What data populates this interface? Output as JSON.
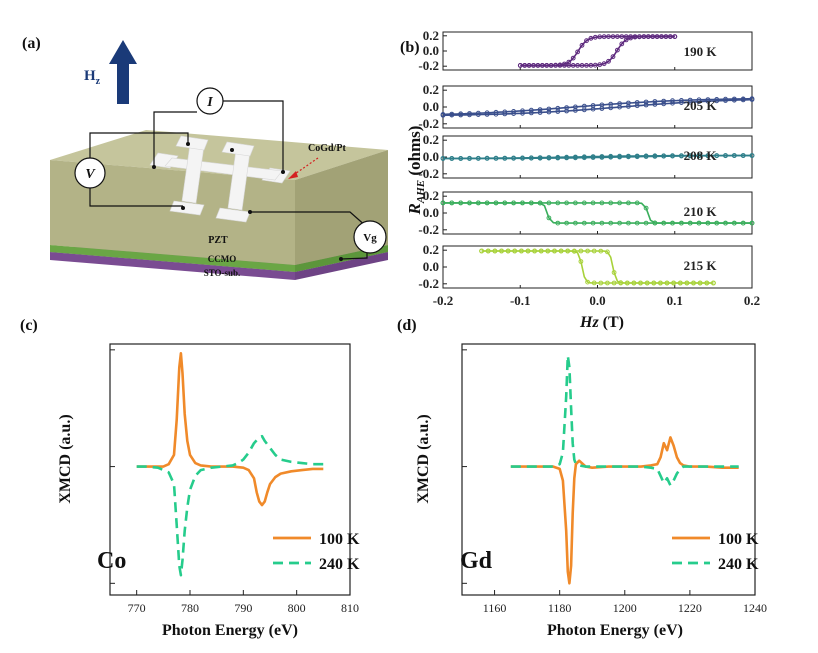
{
  "panel_labels": [
    "(a)",
    "(b)",
    "(c)",
    "(d)"
  ],
  "device": {
    "field_label": "H",
    "field_sub": "z",
    "current_label": "I",
    "voltage_label": "V",
    "gate_label": "Vg",
    "pointer_label": "CoGd/Pt",
    "layers": [
      "PZT",
      "CCMO",
      "STO-sub."
    ],
    "colors": {
      "pzt": "#b9b98e",
      "ccmo": "#7dba52",
      "sto": "#8d5aa6",
      "arrow": "#1a3a78",
      "pointer": "#d42020"
    }
  },
  "chart_data": [
    {
      "id": "b",
      "type": "line",
      "title": "",
      "xlabel": "Hz (T)",
      "xlabel_main": "Hz",
      "xlabel_unit": " (T)",
      "ylabel": "RAHE (ohms)",
      "ylabel_main": "R",
      "ylabel_sub": "AHE",
      "ylabel_unit": " (ohms)",
      "xlim": [
        -0.2,
        0.2
      ],
      "xticks": [
        "-0.2",
        "-0.1",
        "0.0",
        "0.1",
        "0.2"
      ],
      "yticks": [
        "0.2",
        "0.0",
        "-0.2"
      ],
      "ylim": [
        -0.25,
        0.25
      ],
      "series": [
        {
          "name": "190 K",
          "color": "#5e2a7e",
          "xrange": [
            -0.1,
            0.1
          ],
          "amp": 0.19,
          "hc": 0.025,
          "width": 0.012,
          "sign": 1
        },
        {
          "name": "205 K",
          "color": "#3a4f8c",
          "xrange": [
            -0.2,
            0.2
          ],
          "amp": 0.12,
          "hc": 0.0,
          "width": 0.15,
          "sign": 1
        },
        {
          "name": "208 K",
          "color": "#2e7f8a",
          "xrange": [
            -0.2,
            0.2
          ],
          "amp": 0.02,
          "hc": 0.0,
          "width": 0.1,
          "sign": 1
        },
        {
          "name": "210 K",
          "color": "#3aae5c",
          "xrange": [
            -0.2,
            0.2
          ],
          "amp": 0.12,
          "hc": 0.065,
          "width": 0.004,
          "sign": -1
        },
        {
          "name": "215 K",
          "color": "#a8d23a",
          "xrange": [
            -0.15,
            0.15
          ],
          "amp": 0.19,
          "hc": 0.02,
          "width": 0.004,
          "sign": -1
        }
      ]
    },
    {
      "id": "c",
      "type": "line",
      "title": "",
      "element": "Co",
      "xlabel": "Photon Energy (eV)",
      "ylabel": "XMCD (a.u.)",
      "xlim": [
        765,
        810
      ],
      "ylim": [
        -1.1,
        1.05
      ],
      "xticks": [
        "770",
        "780",
        "790",
        "800",
        "810"
      ],
      "series": [
        {
          "name": "100 K",
          "color": "#f08a2a",
          "dash": "",
          "x": [
            770,
            772,
            774,
            775,
            776,
            777,
            777.5,
            778,
            778.3,
            778.6,
            779,
            779.5,
            780,
            781,
            782,
            784,
            786,
            788,
            790,
            791,
            792,
            792.5,
            793,
            793.5,
            794,
            794.5,
            795,
            796,
            797,
            799,
            801,
            803,
            805
          ],
          "y": [
            0,
            0,
            0,
            0,
            0.02,
            0.1,
            0.4,
            0.85,
            0.97,
            0.8,
            0.45,
            0.22,
            0.1,
            0.03,
            0.01,
            0,
            0,
            0,
            -0.01,
            -0.03,
            -0.1,
            -0.22,
            -0.3,
            -0.33,
            -0.3,
            -0.22,
            -0.15,
            -0.09,
            -0.06,
            -0.04,
            -0.03,
            -0.02,
            -0.02
          ]
        },
        {
          "name": "240 K",
          "color": "#26cc8c",
          "dash": "10,6",
          "x": [
            770,
            772,
            774,
            776,
            777,
            777.5,
            778,
            778.3,
            778.6,
            779,
            779.5,
            780,
            781,
            782,
            784,
            786,
            788,
            789,
            790,
            791,
            792,
            793,
            793.5,
            794,
            795,
            796,
            797,
            799,
            801,
            803,
            805
          ],
          "y": [
            0,
            0,
            -0.01,
            -0.05,
            -0.15,
            -0.5,
            -0.85,
            -0.93,
            -0.8,
            -0.55,
            -0.35,
            -0.2,
            -0.08,
            -0.03,
            -0.01,
            0,
            0.01,
            0.03,
            0.06,
            0.12,
            0.2,
            0.25,
            0.26,
            0.22,
            0.16,
            0.1,
            0.06,
            0.04,
            0.03,
            0.02,
            0.02
          ]
        }
      ]
    },
    {
      "id": "d",
      "type": "line",
      "title": "",
      "element": "Gd",
      "xlabel": "Photon Energy (eV)",
      "ylabel": "XMCD (a.u.)",
      "xlim": [
        1150,
        1240
      ],
      "ylim": [
        -1.1,
        1.05
      ],
      "xticks": [
        "1160",
        "1180",
        "1200",
        "1220",
        "1240"
      ],
      "series": [
        {
          "name": "100 K",
          "color": "#f08a2a",
          "dash": "",
          "x": [
            1165,
            1170,
            1175,
            1178,
            1180,
            1181,
            1182,
            1182.5,
            1183,
            1183.5,
            1184,
            1184.5,
            1185,
            1186,
            1188,
            1190,
            1195,
            1200,
            1205,
            1208,
            1210,
            1211,
            1212,
            1213,
            1214,
            1215,
            1216,
            1217,
            1218,
            1220,
            1225,
            1230,
            1235
          ],
          "y": [
            0,
            0,
            0,
            0,
            -0.02,
            -0.12,
            -0.55,
            -0.9,
            -1.0,
            -0.85,
            -0.4,
            -0.1,
            0.02,
            0.05,
            0,
            -0.01,
            0,
            0,
            0,
            0.01,
            0.02,
            0.08,
            0.2,
            0.14,
            0.25,
            0.18,
            0.08,
            0.03,
            0.01,
            0,
            0,
            -0.01,
            -0.01
          ]
        },
        {
          "name": "240 K",
          "color": "#26cc8c",
          "dash": "10,6",
          "x": [
            1165,
            1170,
            1175,
            1178,
            1180,
            1181,
            1182,
            1182.5,
            1183,
            1183.5,
            1184,
            1184.5,
            1185,
            1186,
            1188,
            1190,
            1195,
            1200,
            1205,
            1208,
            1210,
            1211,
            1212,
            1213,
            1214,
            1215,
            1216,
            1217,
            1218,
            1220,
            1225,
            1230,
            1235
          ],
          "y": [
            0,
            0,
            0,
            0,
            0.02,
            0.12,
            0.6,
            0.95,
            0.85,
            0.5,
            0.2,
            0.06,
            0.02,
            0.01,
            0,
            0,
            0,
            0,
            0,
            -0.01,
            -0.02,
            -0.08,
            -0.14,
            -0.1,
            -0.16,
            -0.12,
            -0.06,
            -0.02,
            0,
            0,
            0,
            0,
            0
          ]
        }
      ]
    }
  ]
}
